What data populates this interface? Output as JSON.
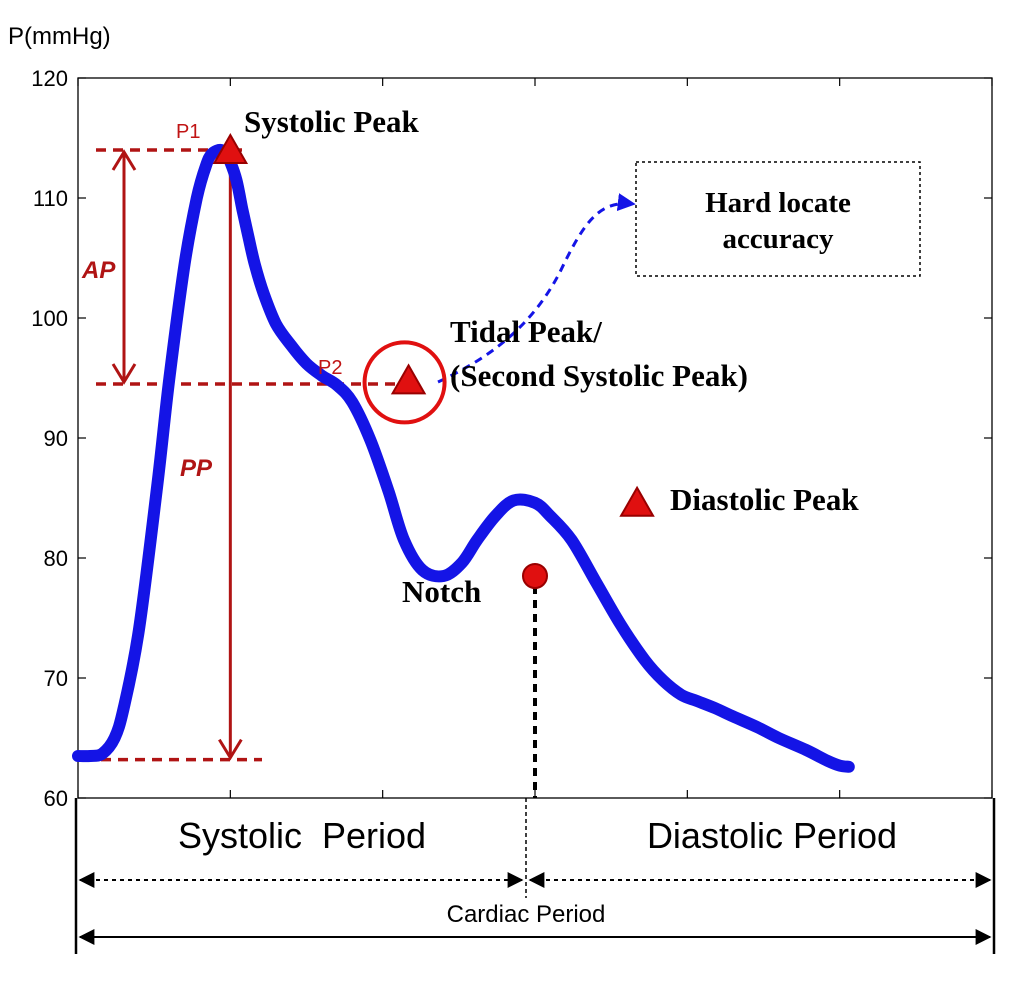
{
  "chart_data": {
    "type": "line",
    "ylabel": "P(mmHg)",
    "ylim": [
      60,
      120
    ],
    "y_ticks": [
      "60",
      "70",
      "80",
      "90",
      "100",
      "110",
      "120"
    ],
    "x_tick_count": 7,
    "series": [
      {
        "color": "#1414e6",
        "x": [
          0.0,
          0.08,
          0.16,
          0.24,
          0.3,
          0.4,
          0.52,
          0.6,
          0.7,
          0.78,
          0.84,
          0.88,
          0.94,
          0.98,
          1.0,
          1.04,
          1.08,
          1.12,
          1.16,
          1.22,
          1.3,
          1.4,
          1.5,
          1.6,
          1.7,
          1.8,
          1.92,
          2.04,
          2.14,
          2.26,
          2.4,
          2.52,
          2.62,
          2.74,
          2.86,
          3.0,
          3.1,
          3.24,
          3.4,
          3.56,
          3.72,
          3.84,
          3.96,
          4.06,
          4.18,
          4.3,
          4.46,
          4.6,
          4.78,
          4.92,
          5.0,
          5.06
        ],
        "y": [
          63.5,
          63.5,
          63.7,
          65.0,
          67.5,
          74.0,
          86.0,
          95.0,
          104.5,
          110.0,
          112.7,
          113.7,
          114.0,
          113.5,
          113.0,
          111.5,
          109.0,
          106.7,
          104.5,
          102.0,
          99.5,
          97.7,
          96.2,
          95.2,
          94.4,
          93.0,
          89.8,
          85.5,
          81.5,
          79.0,
          78.5,
          79.6,
          81.5,
          83.5,
          84.8,
          84.6,
          83.5,
          81.5,
          78.0,
          74.5,
          71.5,
          69.8,
          68.6,
          68.1,
          67.5,
          66.8,
          65.9,
          65.0,
          64.0,
          63.1,
          62.7,
          62.6
        ]
      }
    ],
    "markers": [
      {
        "name": "Systolic Peak",
        "shape": "triangle",
        "x": 1.0,
        "y": 114.0
      },
      {
        "name": "Tidal Peak",
        "shape": "triangle",
        "x": 2.17,
        "y": 94.8
      },
      {
        "name": "Notch",
        "shape": "circle",
        "x": 3.0,
        "y": 78.5
      },
      {
        "name": "Diastolic Peak",
        "shape": "triangle",
        "x": 3.67,
        "y": 84.6
      }
    ],
    "levels": {
      "p1": 114.0,
      "p2": 94.5,
      "base": 63.2
    },
    "annotations": {
      "systolic_peak": "Systolic Peak",
      "tidal_peak_line1": "Tidal Peak/",
      "tidal_peak_line2": "(Second Systolic Peak)",
      "diastolic_peak": "Diastolic Peak",
      "notch": "Notch",
      "hard_locate_line1": "Hard locate",
      "hard_locate_line2": "accuracy",
      "p1": "P1",
      "p2": "P2",
      "ap": "AP",
      "pp": "PP"
    },
    "periods": {
      "systolic": "Systolic  Period",
      "diastolic": "Diastolic Period",
      "cardiac": "Cardiac Period"
    },
    "grid": false
  },
  "colors": {
    "curve": "#1414e6",
    "accent_red": "#b01414",
    "marker_red": "#e01010",
    "axis": "#000000"
  }
}
